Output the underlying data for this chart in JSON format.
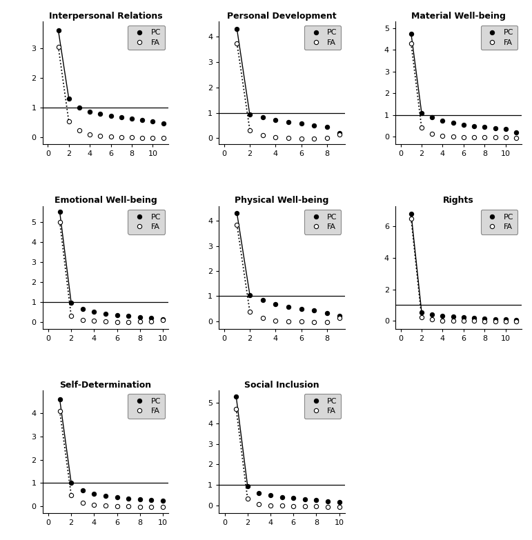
{
  "subplots": [
    {
      "title": "Interpersonal Relations",
      "pc_x": [
        1,
        2,
        3,
        4,
        5,
        6,
        7,
        8,
        9,
        10,
        11
      ],
      "pc_y": [
        3.6,
        1.3,
        1.0,
        0.85,
        0.78,
        0.72,
        0.67,
        0.63,
        0.58,
        0.52,
        0.45
      ],
      "fa_x": [
        1,
        2,
        3,
        4,
        5,
        6,
        7,
        8,
        9,
        10,
        11
      ],
      "fa_y": [
        3.05,
        0.52,
        0.22,
        0.08,
        0.04,
        0.01,
        0.0,
        -0.01,
        -0.02,
        -0.02,
        -0.03
      ],
      "xlim": [
        -0.5,
        11.5
      ],
      "ylim": [
        -0.25,
        3.9
      ],
      "xticks": [
        0,
        2,
        4,
        6,
        8,
        10
      ],
      "yticks": [
        0,
        1,
        2,
        3
      ]
    },
    {
      "title": "Personal Development",
      "pc_x": [
        1,
        2,
        3,
        4,
        5,
        6,
        7,
        8,
        9
      ],
      "pc_y": [
        4.3,
        0.92,
        0.82,
        0.72,
        0.62,
        0.57,
        0.5,
        0.45,
        0.2
      ],
      "fa_x": [
        1,
        2,
        3,
        4,
        5,
        6,
        7,
        8,
        9
      ],
      "fa_y": [
        3.75,
        0.32,
        0.12,
        0.04,
        0.0,
        -0.02,
        -0.03,
        0.02,
        0.15
      ],
      "xlim": [
        -0.4,
        9.4
      ],
      "ylim": [
        -0.25,
        4.6
      ],
      "xticks": [
        0,
        2,
        4,
        6,
        8
      ],
      "yticks": [
        0,
        1,
        2,
        3,
        4
      ]
    },
    {
      "title": "Material Well-being",
      "pc_x": [
        1,
        2,
        3,
        4,
        5,
        6,
        7,
        8,
        9,
        10,
        11
      ],
      "pc_y": [
        4.75,
        1.1,
        0.9,
        0.75,
        0.65,
        0.55,
        0.5,
        0.45,
        0.4,
        0.35,
        0.2
      ],
      "fa_x": [
        1,
        2,
        3,
        4,
        5,
        6,
        7,
        8,
        9,
        10,
        11
      ],
      "fa_y": [
        4.3,
        0.42,
        0.13,
        0.04,
        0.01,
        -0.01,
        -0.01,
        -0.02,
        -0.02,
        -0.03,
        -0.05
      ],
      "xlim": [
        -0.5,
        11.5
      ],
      "ylim": [
        -0.35,
        5.3
      ],
      "xticks": [
        0,
        2,
        4,
        6,
        8,
        10
      ],
      "yticks": [
        0,
        1,
        2,
        3,
        4,
        5
      ]
    },
    {
      "title": "Emotional Well-being",
      "pc_x": [
        1,
        2,
        3,
        4,
        5,
        6,
        7,
        8,
        9,
        10
      ],
      "pc_y": [
        5.5,
        0.95,
        0.65,
        0.5,
        0.4,
        0.32,
        0.28,
        0.22,
        0.18,
        0.12
      ],
      "fa_x": [
        1,
        2,
        3,
        4,
        5,
        6,
        7,
        8,
        9,
        10
      ],
      "fa_y": [
        5.0,
        0.28,
        0.08,
        0.04,
        0.01,
        0.0,
        -0.01,
        0.01,
        0.02,
        0.1
      ],
      "xlim": [
        -0.5,
        10.5
      ],
      "ylim": [
        -0.35,
        5.8
      ],
      "xticks": [
        0,
        2,
        4,
        6,
        8,
        10
      ],
      "yticks": [
        0,
        1,
        2,
        3,
        4,
        5
      ]
    },
    {
      "title": "Physical Well-being",
      "pc_x": [
        1,
        2,
        3,
        4,
        5,
        6,
        7,
        8,
        9
      ],
      "pc_y": [
        4.3,
        1.05,
        0.85,
        0.68,
        0.58,
        0.5,
        0.42,
        0.32,
        0.22
      ],
      "fa_x": [
        1,
        2,
        3,
        4,
        5,
        6,
        7,
        8,
        9
      ],
      "fa_y": [
        3.85,
        0.38,
        0.12,
        0.03,
        0.0,
        -0.02,
        -0.03,
        -0.03,
        0.12
      ],
      "xlim": [
        -0.4,
        9.4
      ],
      "ylim": [
        -0.3,
        4.6
      ],
      "xticks": [
        0,
        2,
        4,
        6,
        8
      ],
      "yticks": [
        0,
        1,
        2,
        3,
        4
      ]
    },
    {
      "title": "Rights",
      "pc_x": [
        1,
        2,
        3,
        4,
        5,
        6,
        7,
        8,
        9,
        10,
        11
      ],
      "pc_y": [
        6.8,
        0.55,
        0.42,
        0.33,
        0.27,
        0.22,
        0.18,
        0.14,
        0.11,
        0.08,
        0.05
      ],
      "fa_x": [
        1,
        2,
        3,
        4,
        5,
        6,
        7,
        8,
        9,
        10,
        11
      ],
      "fa_y": [
        6.5,
        0.22,
        0.08,
        0.02,
        0.0,
        -0.01,
        -0.01,
        -0.02,
        -0.03,
        -0.04,
        -0.05
      ],
      "xlim": [
        -0.5,
        11.5
      ],
      "ylim": [
        -0.5,
        7.3
      ],
      "xticks": [
        0,
        2,
        4,
        6,
        8,
        10
      ],
      "yticks": [
        0,
        2,
        4,
        6
      ]
    },
    {
      "title": "Self-Determination",
      "pc_x": [
        1,
        2,
        3,
        4,
        5,
        6,
        7,
        8,
        9,
        10
      ],
      "pc_y": [
        4.6,
        1.0,
        0.68,
        0.52,
        0.43,
        0.38,
        0.33,
        0.28,
        0.26,
        0.22
      ],
      "fa_x": [
        1,
        2,
        3,
        4,
        5,
        6,
        7,
        8,
        9,
        10
      ],
      "fa_y": [
        4.1,
        0.48,
        0.13,
        0.04,
        0.01,
        -0.01,
        -0.02,
        -0.03,
        -0.03,
        -0.04
      ],
      "xlim": [
        -0.5,
        10.5
      ],
      "ylim": [
        -0.3,
        5.0
      ],
      "xticks": [
        0,
        2,
        4,
        6,
        8,
        10
      ],
      "yticks": [
        0,
        1,
        2,
        3,
        4
      ]
    },
    {
      "title": "Social Inclusion",
      "pc_x": [
        1,
        2,
        3,
        4,
        5,
        6,
        7,
        8,
        9,
        10
      ],
      "pc_y": [
        5.3,
        0.95,
        0.62,
        0.52,
        0.42,
        0.37,
        0.32,
        0.27,
        0.22,
        0.18
      ],
      "fa_x": [
        1,
        2,
        3,
        4,
        5,
        6,
        7,
        8,
        9,
        10
      ],
      "fa_y": [
        4.7,
        0.33,
        0.09,
        0.02,
        0.0,
        -0.02,
        -0.03,
        -0.03,
        -0.04,
        -0.04
      ],
      "xlim": [
        -0.5,
        10.5
      ],
      "ylim": [
        -0.35,
        5.6
      ],
      "xticks": [
        0,
        2,
        4,
        6,
        8,
        10
      ],
      "yticks": [
        0,
        1,
        2,
        3,
        4,
        5
      ]
    }
  ],
  "hline_y": 1.0,
  "pc_color": "black",
  "fa_color": "black",
  "background_color": "white",
  "legend_bg_color": "#d8d8d8",
  "legend_pc_label": "PC",
  "legend_fa_label": "FA"
}
